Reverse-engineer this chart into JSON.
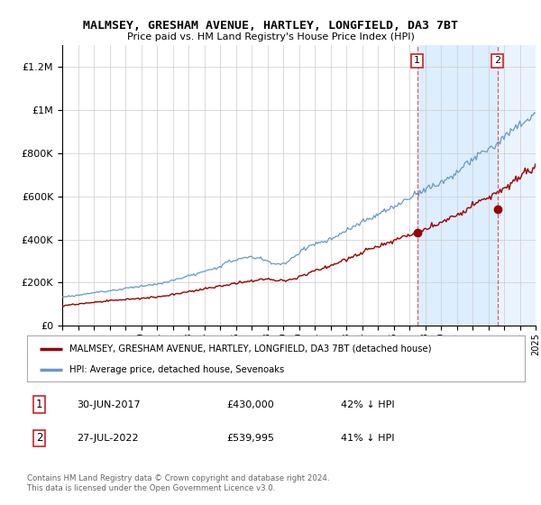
{
  "title": "MALMSEY, GRESHAM AVENUE, HARTLEY, LONGFIELD, DA3 7BT",
  "subtitle": "Price paid vs. HM Land Registry's House Price Index (HPI)",
  "ylim": [
    0,
    1300000
  ],
  "yticks": [
    0,
    200000,
    400000,
    600000,
    800000,
    1000000,
    1200000
  ],
  "hpi_color": "#6699cc",
  "price_color": "#990000",
  "vline_color": "#dd4444",
  "bg_color": "#ffffff",
  "shaded_color": "#ddeeff",
  "grid_color": "#cccccc",
  "legend_label_price": "MALMSEY, GRESHAM AVENUE, HARTLEY, LONGFIELD, DA3 7BT (detached house)",
  "legend_label_hpi": "HPI: Average price, detached house, Sevenoaks",
  "sale1_date": "30-JUN-2017",
  "sale1_price": "£430,000",
  "sale1_hpi": "42% ↓ HPI",
  "sale1_year": 2017.5,
  "sale1_value": 430000,
  "sale2_date": "27-JUL-2022",
  "sale2_price": "£539,995",
  "sale2_hpi": "41% ↓ HPI",
  "sale2_year": 2022.58,
  "sale2_value": 539995,
  "copyright_text": "Contains HM Land Registry data © Crown copyright and database right 2024.\nThis data is licensed under the Open Government Licence v3.0.",
  "xmin": 1995,
  "xmax": 2025
}
